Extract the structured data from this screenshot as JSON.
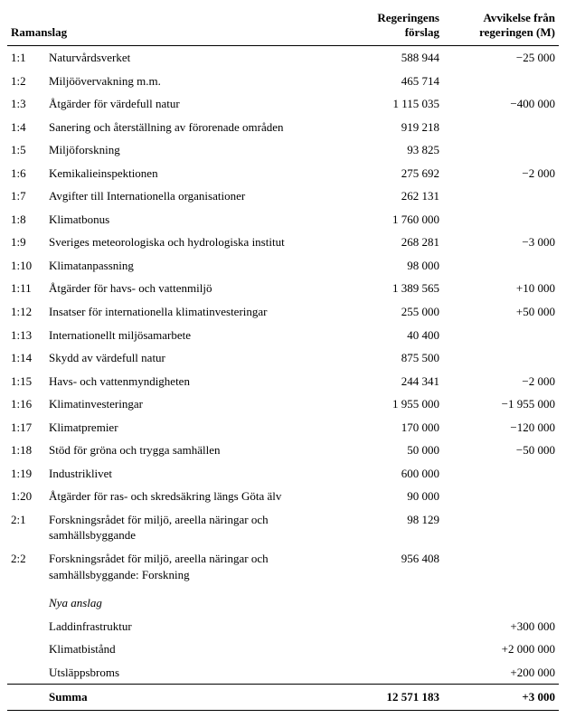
{
  "header": {
    "col1": "Ramanslag",
    "col2_line1": "Regeringens",
    "col2_line2": "förslag",
    "col3_line1": "Avvikelse från",
    "col3_line2": "regeringen (M)"
  },
  "rows": [
    {
      "num": "1:1",
      "name": "Naturvårdsverket",
      "gov": "588 944",
      "dev": "−25 000"
    },
    {
      "num": "1:2",
      "name": "Miljöövervakning m.m.",
      "gov": "465 714",
      "dev": ""
    },
    {
      "num": "1:3",
      "name": "Åtgärder för värdefull natur",
      "gov": "1 115 035",
      "dev": "−400 000"
    },
    {
      "num": "1:4",
      "name": "Sanering och återställning av förorenade områden",
      "gov": "919 218",
      "dev": ""
    },
    {
      "num": "1:5",
      "name": "Miljöforskning",
      "gov": "93 825",
      "dev": ""
    },
    {
      "num": "1:6",
      "name": "Kemikalieinspektionen",
      "gov": "275 692",
      "dev": "−2 000"
    },
    {
      "num": "1:7",
      "name": "Avgifter till Internationella organisationer",
      "gov": "262 131",
      "dev": ""
    },
    {
      "num": "1:8",
      "name": "Klimatbonus",
      "gov": "1 760 000",
      "dev": ""
    },
    {
      "num": "1:9",
      "name": "Sveriges meteorologiska och hydrologiska institut",
      "gov": "268 281",
      "dev": "−3 000"
    },
    {
      "num": "1:10",
      "name": "Klimatanpassning",
      "gov": "98 000",
      "dev": ""
    },
    {
      "num": "1:11",
      "name": "Åtgärder för havs- och vattenmiljö",
      "gov": "1 389 565",
      "dev": "+10 000"
    },
    {
      "num": "1:12",
      "name": "Insatser för internationella klimatinvesteringar",
      "gov": "255 000",
      "dev": "+50 000"
    },
    {
      "num": "1:13",
      "name": "Internationellt miljösamarbete",
      "gov": "40 400",
      "dev": ""
    },
    {
      "num": "1:14",
      "name": "Skydd av värdefull natur",
      "gov": "875 500",
      "dev": ""
    },
    {
      "num": "1:15",
      "name": "Havs- och vattenmyndigheten",
      "gov": "244 341",
      "dev": "−2 000"
    },
    {
      "num": "1:16",
      "name": "Klimatinvesteringar",
      "gov": "1 955 000",
      "dev": "−1 955 000"
    },
    {
      "num": "1:17",
      "name": "Klimatpremier",
      "gov": "170 000",
      "dev": "−120 000"
    },
    {
      "num": "1:18",
      "name": "Stöd för gröna och trygga samhällen",
      "gov": "50 000",
      "dev": "−50 000"
    },
    {
      "num": "1:19",
      "name": "Industriklivet",
      "gov": "600 000",
      "dev": ""
    },
    {
      "num": "1:20",
      "name": "Åtgärder för ras- och skredsäkring längs Göta älv",
      "gov": "90 000",
      "dev": ""
    },
    {
      "num": "2:1",
      "name": "Forskningsrådet för miljö, areella näringar och samhällsbyggande",
      "gov": "98 129",
      "dev": ""
    },
    {
      "num": "2:2",
      "name": "Forskningsrådet för miljö, areella näringar och samhällsbyggande: Forskning",
      "gov": "956 408",
      "dev": ""
    }
  ],
  "section_label": "Nya anslag",
  "new_rows": [
    {
      "num": "",
      "name": "Laddinfrastruktur",
      "gov": "",
      "dev": "+300 000"
    },
    {
      "num": "",
      "name": "Klimatbistånd",
      "gov": "",
      "dev": "+2 000 000"
    },
    {
      "num": "",
      "name": "Utsläppsbroms",
      "gov": "",
      "dev": "+200 000"
    }
  ],
  "footer": {
    "label": "Summa",
    "gov": "12 571 183",
    "dev": "+3 000"
  }
}
